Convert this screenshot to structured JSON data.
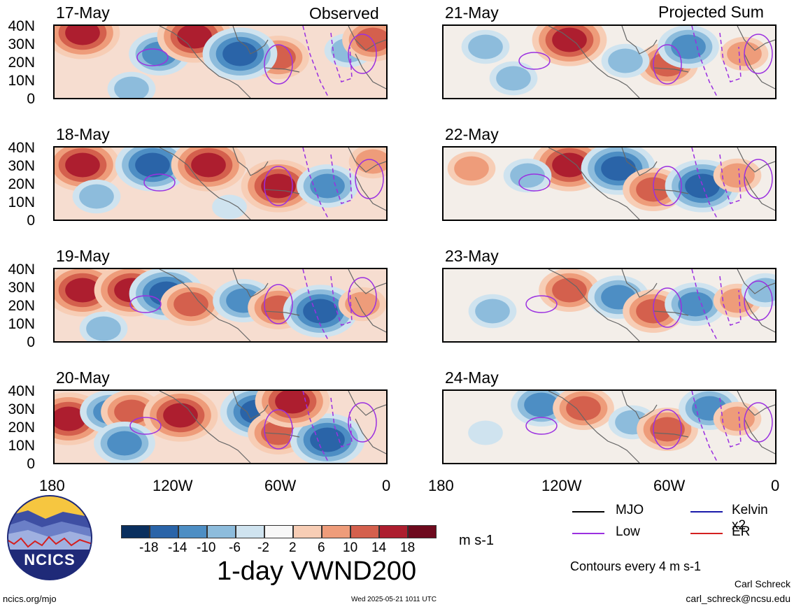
{
  "header": {
    "observed_label": "Observed",
    "projected_label": "Projected Sum"
  },
  "panels": {
    "observed": [
      {
        "date": "17-May"
      },
      {
        "date": "18-May"
      },
      {
        "date": "19-May"
      },
      {
        "date": "20-May"
      }
    ],
    "projected": [
      {
        "date": "21-May"
      },
      {
        "date": "22-May"
      },
      {
        "date": "23-May"
      },
      {
        "date": "24-May"
      }
    ]
  },
  "axes": {
    "lat_labels": [
      "40N",
      "30N",
      "20N",
      "10N",
      "0"
    ],
    "lon_labels": [
      "180",
      "120W",
      "60W",
      "0"
    ]
  },
  "colorbar": {
    "tick_labels": [
      "-18",
      "-14",
      "-10",
      "-6",
      "-2",
      "2",
      "6",
      "10",
      "14",
      "18"
    ],
    "colors": [
      "#0a2f5e",
      "#2a64a8",
      "#4d8ec4",
      "#8dbcdc",
      "#cfe3ef",
      "#f7f7f7",
      "#f7cdb5",
      "#ee9c7a",
      "#d4604d",
      "#ad1e2f",
      "#6e0a1e"
    ],
    "units": "m s-1"
  },
  "title": "1-day VWND200",
  "legend": {
    "items": [
      {
        "label": "MJO",
        "color": "#000000"
      },
      {
        "label": "Kelvin x2",
        "color": "#1a1aaa"
      },
      {
        "label": "Low",
        "color": "#9b30e0"
      },
      {
        "label": "ER",
        "color": "#d42020"
      }
    ],
    "contour_note": "Contours every 4 m s-1"
  },
  "logo": {
    "text": "NCICS"
  },
  "footer": {
    "url": "ncics.org/mjo",
    "timestamp": "Wed 2025-05-21 1011 UTC",
    "author": "Carl Schreck",
    "email": "carl_schreck@ncsu.edu"
  }
}
